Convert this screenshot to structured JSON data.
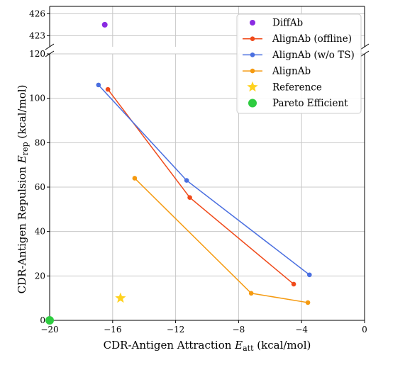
{
  "chart_data": {
    "type": "line",
    "xlabel": {
      "main": "CDR-Antigen Attraction ",
      "sym": "E",
      "sub": "att",
      "unit": " (kcal/mol)"
    },
    "ylabel": {
      "main": "CDR-Antigen Repulsion ",
      "sym": "E",
      "sub": "rep",
      "unit": " (kcal/mol)"
    },
    "xlim": [
      -20,
      0
    ],
    "ylim_lower": [
      0,
      120
    ],
    "ylim_upper": [
      421.5,
      427
    ],
    "broken_y_axis": true,
    "x_ticks": [
      -20,
      -16,
      -12,
      -8,
      -4,
      0
    ],
    "x_tick_labels": [
      "−20",
      "−16",
      "−12",
      "−8",
      "−4",
      "0"
    ],
    "y_ticks_lower": [
      0,
      20,
      40,
      60,
      80,
      100,
      120
    ],
    "y_ticks_upper": [
      423,
      426
    ],
    "grid": true,
    "legend_position": "top-right",
    "series": [
      {
        "name": "DiffAb",
        "kind": "scatter",
        "color": "#8a2be2",
        "points": [
          [
            -16.5,
            424.5
          ]
        ]
      },
      {
        "name": "AlignAb (offline)",
        "kind": "line",
        "color": "#f04a1a",
        "points": [
          [
            -16.3,
            104
          ],
          [
            -11.1,
            55.3
          ],
          [
            -4.5,
            16.3
          ]
        ]
      },
      {
        "name": "AlignAb (w/o TS)",
        "kind": "line",
        "color": "#4a6fe0",
        "points": [
          [
            -16.9,
            106
          ],
          [
            -11.3,
            63
          ],
          [
            -3.5,
            20.5
          ]
        ]
      },
      {
        "name": "AlignAb",
        "kind": "line",
        "color": "#f59a10",
        "points": [
          [
            -14.6,
            64
          ],
          [
            -7.2,
            12.2
          ],
          [
            -3.6,
            8
          ]
        ]
      },
      {
        "name": "Reference",
        "kind": "star",
        "color": "#ffd21f",
        "points": [
          [
            -15.5,
            10
          ]
        ]
      },
      {
        "name": "Pareto Efficient",
        "kind": "scatter",
        "color": "#2ecc40",
        "points": [
          [
            -20,
            0
          ]
        ]
      }
    ]
  }
}
